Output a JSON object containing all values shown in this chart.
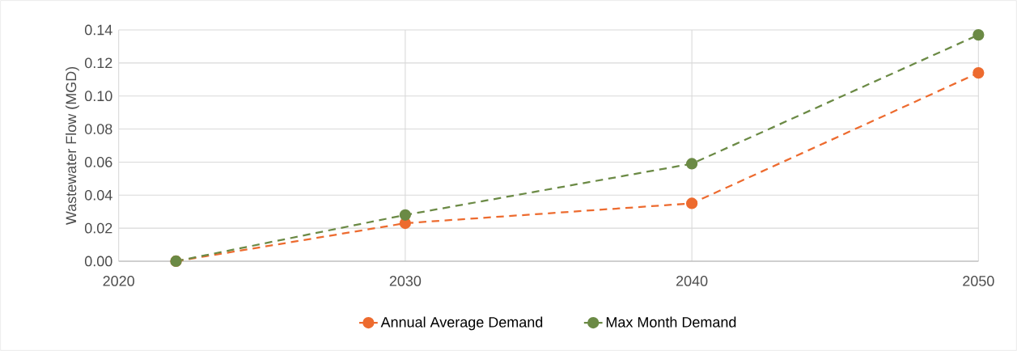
{
  "chart_data": {
    "type": "line",
    "ylabel": "Wastewater Flow (MGD)",
    "x": [
      2022,
      2030,
      2040,
      2050
    ],
    "series": [
      {
        "name": "Annual Average Demand",
        "color": "#ed6b2f",
        "values": [
          0,
          0.023,
          0.035,
          0.114
        ]
      },
      {
        "name": "Max Month Demand",
        "color": "#6b8a45",
        "values": [
          0,
          0.028,
          0.059,
          0.137
        ]
      }
    ],
    "xlim": [
      2020,
      2050
    ],
    "xticks": [
      2020,
      2030,
      2040,
      2050
    ],
    "ylim": [
      0,
      0.14
    ],
    "yticks": [
      {
        "value": 0,
        "label": "0.00"
      },
      {
        "value": 0.02,
        "label": "0.02"
      },
      {
        "value": 0.04,
        "label": "0.04"
      },
      {
        "value": 0.06,
        "label": "0.06"
      },
      {
        "value": 0.08,
        "label": "0.08"
      },
      {
        "value": 0.1,
        "label": "0.10"
      },
      {
        "value": 0.12,
        "label": "0.12"
      },
      {
        "value": 0.14,
        "label": "0.14"
      }
    ],
    "grid": true,
    "legend": "bottom",
    "marker": "circle",
    "line_style": "dashed"
  }
}
